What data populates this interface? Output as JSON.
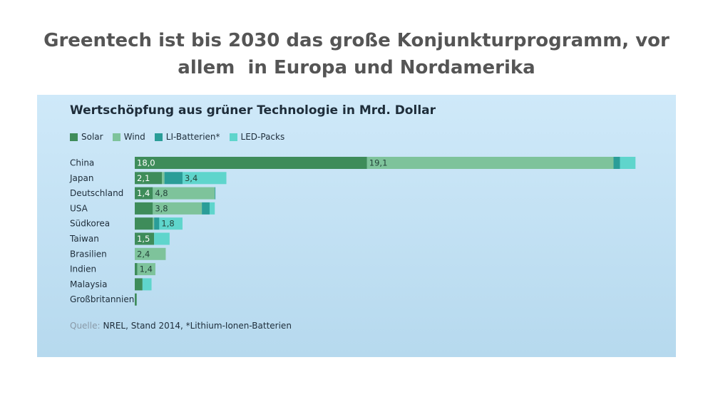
{
  "slide": {
    "title_line1": "Greentech ist bis 2030 das große Konjunkturprogramm, vor",
    "title_line2": "allem  in Europa und Nordamerika"
  },
  "chart_data": {
    "type": "bar",
    "orientation": "horizontal",
    "stacked": true,
    "title": "Wertschöpfung aus grüner Technologie in Mrd. Dollar",
    "source_prefix": "Quelle:",
    "source_text": "NREL, Stand 2014, *Lithium-Ionen-Batterien",
    "grid": false,
    "legend_position": "top-left",
    "categories": [
      "China",
      "Japan",
      "Deutschland",
      "USA",
      "Südkorea",
      "Taiwan",
      "Brasilien",
      "Indien",
      "Malaysia",
      "Großbritannien"
    ],
    "series": [
      {
        "name": "Solar",
        "color": "#3e8c5a",
        "values": [
          18.0,
          2.1,
          1.4,
          1.4,
          1.4,
          1.5,
          0.0,
          0.2,
          0.6,
          0.15
        ],
        "labels": [
          "18,0",
          "2,1",
          "1,4",
          "",
          "",
          "1,5",
          "",
          "",
          "",
          ""
        ]
      },
      {
        "name": "Wind",
        "color": "#7ec39b",
        "values": [
          19.1,
          0.2,
          4.8,
          3.8,
          0.1,
          0.0,
          2.4,
          1.4,
          0.0,
          0.0
        ],
        "labels": [
          "19,1",
          "",
          "4,8",
          "3,8",
          "",
          "",
          "2,4",
          "1,4",
          "",
          ""
        ]
      },
      {
        "name": "LI-Batterien*",
        "color": "#2a9d98",
        "values": [
          0.5,
          1.4,
          0.05,
          0.6,
          0.4,
          0.0,
          0.0,
          0.0,
          0.0,
          0.0
        ],
        "labels": [
          "",
          "",
          "",
          "",
          "",
          "",
          "",
          "",
          "",
          ""
        ]
      },
      {
        "name": "LED-Packs",
        "color": "#5fd5cc",
        "values": [
          1.2,
          3.4,
          0.0,
          0.4,
          1.8,
          1.2,
          0.0,
          0.0,
          0.7,
          0.0
        ],
        "labels": [
          "",
          "3,4",
          "",
          "",
          "1,8",
          "",
          "",
          "",
          "",
          ""
        ]
      }
    ]
  }
}
